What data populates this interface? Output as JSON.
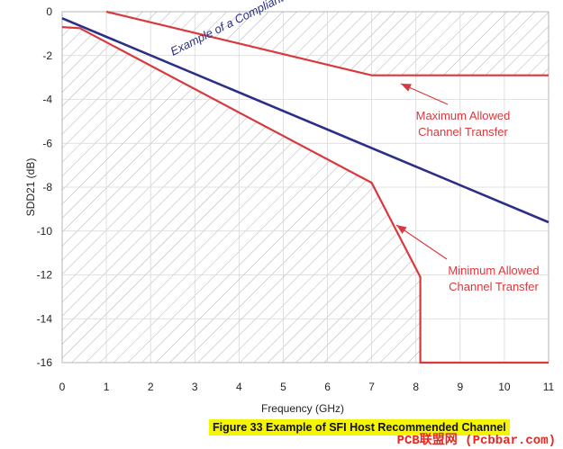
{
  "chart_data": {
    "type": "line",
    "xlabel": "Frequency (GHz)",
    "ylabel": "SDD21 (dB)",
    "xlim": [
      0,
      11
    ],
    "ylim": [
      -16,
      0
    ],
    "xticks": [
      "0",
      "1",
      "2",
      "3",
      "4",
      "5",
      "6",
      "7",
      "8",
      "9",
      "10",
      "11"
    ],
    "yticks": [
      "0",
      "-2",
      "-4",
      "-6",
      "-8",
      "-10",
      "-12",
      "-14",
      "-16"
    ],
    "grid": true,
    "series": [
      {
        "role": "compliant",
        "color": "#2b2f86",
        "points": [
          [
            0,
            -0.3
          ],
          [
            11,
            -9.6
          ]
        ]
      },
      {
        "role": "max",
        "color": "#d9393d",
        "points": [
          [
            1,
            0
          ],
          [
            7,
            -2.9
          ],
          [
            11,
            -2.9
          ]
        ]
      },
      {
        "role": "min",
        "color": "#d9393d",
        "points": [
          [
            0,
            -0.7
          ],
          [
            0.4,
            -0.75
          ],
          [
            7,
            -7.8
          ],
          [
            8.1,
            -12.1
          ],
          [
            8.1,
            -16
          ],
          [
            11,
            -16
          ]
        ]
      }
    ],
    "annotations": [
      {
        "id": "compliant",
        "text": "Example of a Compliant Channel",
        "color": "#2b2f86"
      },
      {
        "id": "max",
        "lines": [
          "Maximum Allowed",
          "Channel Transfer"
        ],
        "color": "#d9393d"
      },
      {
        "id": "min",
        "lines": [
          "Minimum Allowed",
          "Channel Transfer"
        ],
        "color": "#d9393d"
      }
    ]
  },
  "caption": "Figure 33  Example of SFI Host Recommended Channel",
  "watermark": "PCB联盟网 (Pcbbar.com)",
  "colors": {
    "hatch": "#b0b0b0",
    "grid": "#d8d8d8",
    "caption_bg": "#f5f500"
  }
}
